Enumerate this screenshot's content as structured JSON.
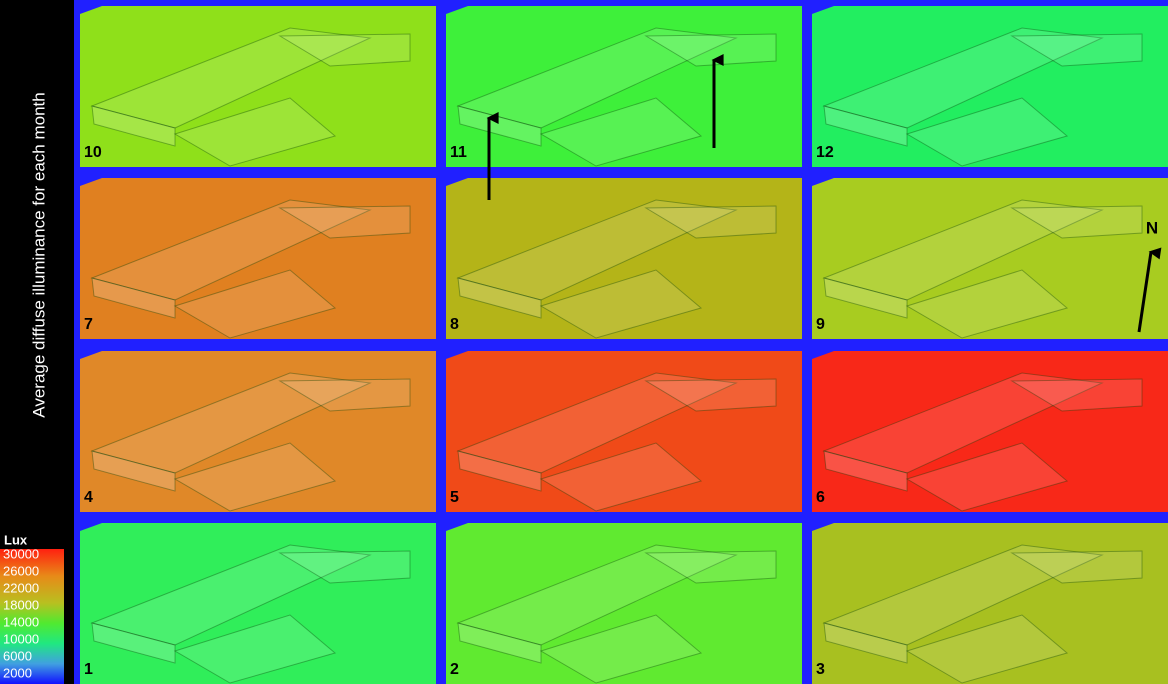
{
  "sidebar_title": "Average diffuse illuminance for each month",
  "legend": {
    "title": "Lux",
    "labels": [
      "30000",
      "26000",
      "22000",
      "18000",
      "14000",
      "10000",
      "6000",
      "2000"
    ]
  },
  "panels": [
    {
      "label": "10"
    },
    {
      "label": "11"
    },
    {
      "label": "12"
    },
    {
      "label": "7"
    },
    {
      "label": "8"
    },
    {
      "label": "9"
    },
    {
      "label": "4"
    },
    {
      "label": "5"
    },
    {
      "label": "6"
    },
    {
      "label": "1"
    },
    {
      "label": "2"
    },
    {
      "label": "3"
    }
  ],
  "north_label": "N"
}
